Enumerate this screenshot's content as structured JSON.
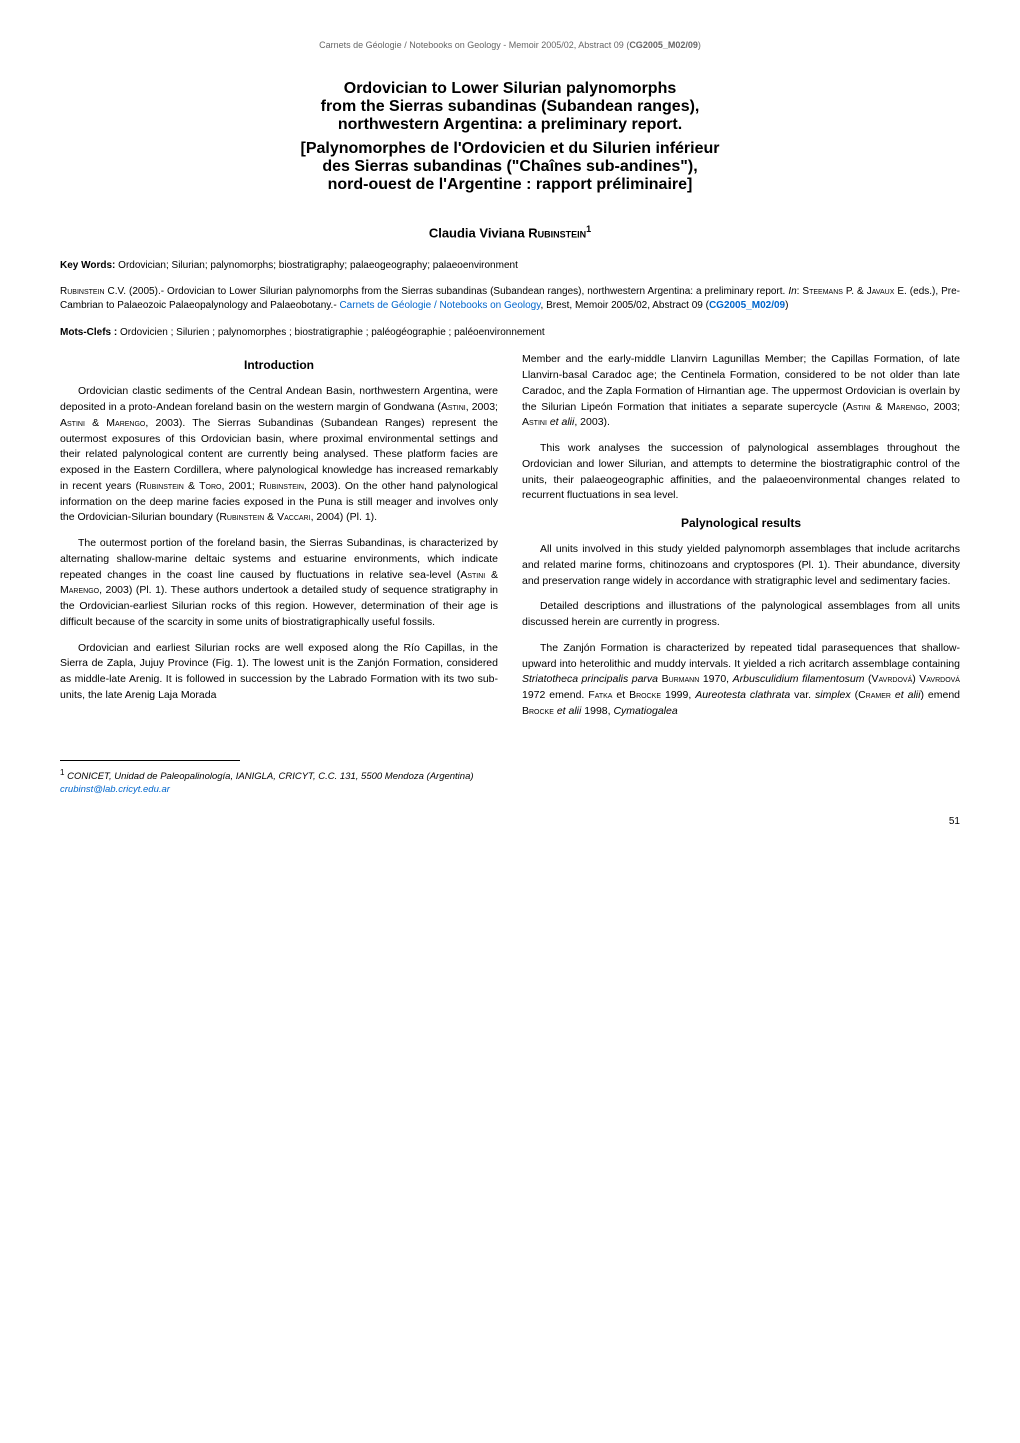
{
  "header": {
    "text_before": "Carnets de Géologie / Notebooks on Geology - Memoir 2005/02, Abstract 09 (",
    "code": "CG2005_M02/09",
    "text_after": ")"
  },
  "title": {
    "line1": "Ordovician to Lower Silurian palynomorphs",
    "line2": "from the Sierras subandinas (Subandean ranges),",
    "line3": "northwestern Argentina: a preliminary report.",
    "alt_line1": "[Palynomorphes de l'Ordovicien et du Silurien inférieur",
    "alt_line2": "des Sierras subandinas (\"Chaînes sub-andines\"),",
    "alt_line3": "nord-ouest de l'Argentine : rapport préliminaire]"
  },
  "author": {
    "first": "Claudia Viviana ",
    "surname": "Rubinstein",
    "sup": "1"
  },
  "keywords_en": {
    "label": "Key Words:",
    "text": " Ordovician; Silurian; palynomorphs; biostratigraphy; palaeogeography; palaeoenvironment"
  },
  "citation": {
    "author_caps": "Rubinstein",
    "after_author": " C.V. (2005).- Ordovician to Lower Silurian palynomorphs from the Sierras subandinas (Subandean ranges), northwestern Argentina: a preliminary report. ",
    "in_italic": "In",
    "after_in": ": ",
    "eds1": "Steemans",
    "eds_mid": " P. & ",
    "eds2": "Javaux",
    "after_eds": " E. (eds.), Pre-Cambrian to Palaeozoic Palaeopalynology and Palaeobotany.- ",
    "journal_link": "Carnets de Géologie / Notebooks on Geology",
    "after_journal": ", Brest, Memoir 2005/02, Abstract 09 (",
    "code_link": "CG2005_M02/09",
    "close": ")"
  },
  "keywords_fr": {
    "label": "Mots-Clefs :",
    "text": " Ordovicien ; Silurien ; palynomorphes ; biostratigraphie ; paléogéographie ; paléoenvironnement"
  },
  "sections": {
    "introduction": {
      "heading": "Introduction",
      "p1_a": "Ordovician clastic sediments of the Central Andean Basin, northwestern Argentina, were deposited in a proto-Andean foreland basin on the western margin of Gondwana (",
      "p1_sc1": "Astini",
      "p1_b": ", 2003; ",
      "p1_sc2": "Astini",
      "p1_c": " & ",
      "p1_sc3": "Marengo",
      "p1_d": ", 2003). The Sierras Subandinas (Subandean Ranges) represent the outermost exposures of this Ordovician basin, where proximal environmental settings and their related palynological content are currently being analysed. These platform facies are exposed in the Eastern Cordillera, where palynological knowledge has increased remarkably in recent years (",
      "p1_sc4": "Rubinstein",
      "p1_e": " & ",
      "p1_sc5": "Toro",
      "p1_f": ", 2001; ",
      "p1_sc6": "Rubinstein",
      "p1_g": ", 2003). On the other hand palynological information on the deep marine facies exposed in the Puna is still meager and involves only the Ordovician-Silurian boundary (",
      "p1_sc7": "Rubinstein",
      "p1_h": " & ",
      "p1_sc8": "Vaccari",
      "p1_i": ", 2004) (Pl. 1).",
      "p2_a": "The outermost portion of the foreland basin, the Sierras Subandinas, is characterized by alternating shallow-marine deltaic systems and estuarine environments, which indicate repeated changes in the coast line caused by fluctuations in relative sea-level (",
      "p2_sc1": "Astini",
      "p2_b": " & ",
      "p2_sc2": "Marengo",
      "p2_c": ", 2003) (Pl. 1). These authors undertook a detailed study of sequence stratigraphy in the Ordovician-earliest Silurian rocks of this region. However, determination of their age is difficult because of the scarcity in some units of biostratigraphically useful fossils.",
      "p3": "Ordovician and earliest Silurian rocks are well exposed along the Río Capillas, in the Sierra de Zapla, Jujuy Province (Fig. 1). The lowest unit is the Zanjón Formation, considered as middle-late Arenig. It is followed in succession by the Labrado Formation with its two sub-units, the late Arenig Laja Morada",
      "p3_cont_a": "Member and the early-middle Llanvirn Lagunillas Member; the Capillas Formation, of late Llanvirn-basal Caradoc age; the Centinela Formation, considered to be not older than late Caradoc, and the Zapla Formation of Hirnantian age. The uppermost Ordovician is overlain by the Silurian Lipeón Formation that initiates a separate supercycle (",
      "p3_cont_sc1": "Astini",
      "p3_cont_b": " & ",
      "p3_cont_sc2": "Marengo",
      "p3_cont_c": ", 2003; ",
      "p3_cont_sc3": "Astini",
      "p3_cont_d": " ",
      "p3_cont_it": "et alii",
      "p3_cont_e": ", 2003).",
      "p4": "This work analyses the succession of palynological assemblages throughout the Ordovician and lower Silurian, and attempts to determine the biostratigraphic control of the units, their palaeogeographic affinities, and the palaeoenvironmental changes related to recurrent fluctuations in sea level."
    },
    "results": {
      "heading": "Palynological results",
      "p1": "All units involved in this study yielded palynomorph assemblages that include acritarchs and related marine forms, chitinozoans and cryptospores (Pl. 1). Their abundance, diversity and preservation range widely in accordance with stratigraphic level and sedimentary facies.",
      "p2": "Detailed descriptions and illustrations of the palynological assemblages from all units discussed herein are currently in progress.",
      "p3_a": "The Zanjón Formation is characterized by repeated tidal parasequences that shallow-upward into heterolithic and muddy intervals. It yielded a rich acritarch assemblage containing ",
      "p3_it1": "Striatotheca principalis parva",
      "p3_b": " ",
      "p3_sc1": "Burmann",
      "p3_c": " 1970, ",
      "p3_it2": "Arbusculidium filamentosum",
      "p3_d": " (",
      "p3_sc2": "Vavrdová",
      "p3_e": ") ",
      "p3_sc3": "Vavrdová",
      "p3_f": " 1972 emend. ",
      "p3_sc4": "Fatka",
      "p3_g": " et ",
      "p3_sc5": "Brocke",
      "p3_h": " 1999, ",
      "p3_it3": "Aureotesta clathrata",
      "p3_i": " var. ",
      "p3_it4": "simplex",
      "p3_j": " (",
      "p3_sc6": "Cramer",
      "p3_k": " ",
      "p3_it5": "et alii",
      "p3_l": ") emend ",
      "p3_sc7": "Brocke",
      "p3_m": " ",
      "p3_it6": "et alii",
      "p3_n": " 1998, ",
      "p3_it7": "Cymatiogalea"
    }
  },
  "footnote": {
    "sup": "1",
    "text": " CONICET, Unidad de Paleopalinología, IANIGLA, CRICYT, C.C. 131, 5500 Mendoza (Argentina)",
    "email": "crubinst@lab.cricyt.edu.ar"
  },
  "page_number": "51"
}
